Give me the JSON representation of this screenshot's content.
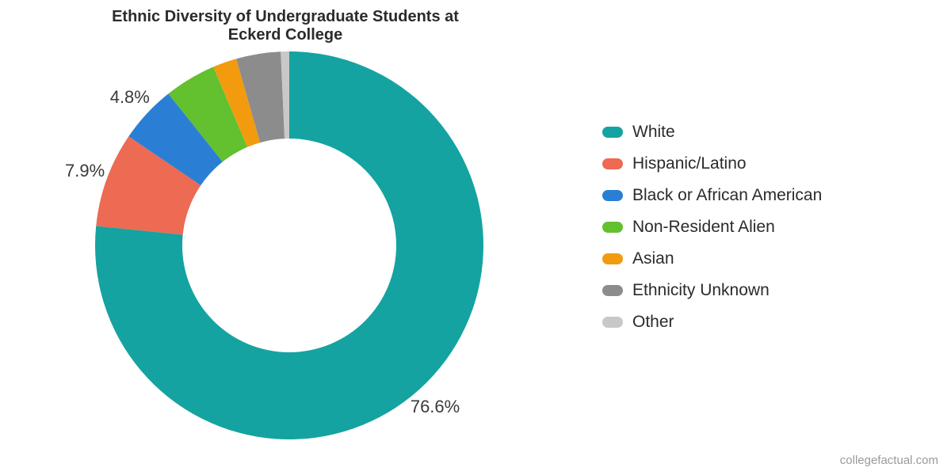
{
  "title": {
    "line1": "Ethnic Diversity of Undergraduate Students at",
    "line2": "Eckerd College",
    "fontsize": 20,
    "color": "#2b2b2b"
  },
  "chart": {
    "type": "donut",
    "outer_diameter": 490,
    "inner_diameter": 270,
    "start_angle_deg": 0,
    "background_color": "#ffffff",
    "slices": [
      {
        "name": "White",
        "value": 76.6,
        "color": "#14a3a1",
        "show_label": true,
        "label": "76.6%"
      },
      {
        "name": "Hispanic/Latino",
        "value": 7.9,
        "color": "#ed6a53",
        "show_label": true,
        "label": "7.9%"
      },
      {
        "name": "Black or African American",
        "value": 4.8,
        "color": "#2a7fd4",
        "show_label": true,
        "label": "4.8%"
      },
      {
        "name": "Non-Resident Alien",
        "value": 4.3,
        "color": "#63c02f",
        "show_label": false,
        "label": ""
      },
      {
        "name": "Asian",
        "value": 2.0,
        "color": "#f29b0f",
        "show_label": false,
        "label": ""
      },
      {
        "name": "Ethnicity Unknown",
        "value": 3.7,
        "color": "#8c8c8c",
        "show_label": false,
        "label": ""
      },
      {
        "name": "Other",
        "value": 0.7,
        "color": "#c8c8c8",
        "show_label": false,
        "label": ""
      }
    ],
    "slice_label_fontsize": 22,
    "slice_label_color": "#3a3a3a",
    "label_radius_factor": 1.12
  },
  "legend": {
    "fontsize": 21,
    "color": "#2b2b2b",
    "swatch_width": 26,
    "swatch_height": 14,
    "swatch_radius": 7,
    "item_gap": 16
  },
  "attribution": {
    "text": "collegefactual.com",
    "color": "#9a9a9a",
    "fontsize": 15
  }
}
